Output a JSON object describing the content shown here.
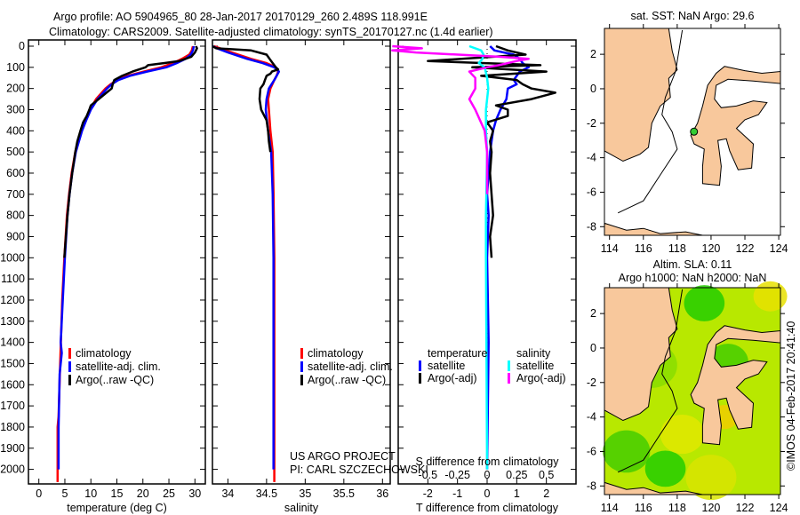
{
  "header": {
    "title_line1": "Argo profile: AO 5904965_80 28-Jan-2017 20170129_260 2.489S 118.991E",
    "title_line2": "Climatology: CARS2009. Satellite-adjusted climatology: synTS_20170127.nc (1.4d earlier)"
  },
  "credit": {
    "line1": "US ARGO PROJECT",
    "line2": "PI: CARL SZCZECHOWSKI"
  },
  "watermark": "©IMOS 04-Feb-2017 20:41:40",
  "colors": {
    "climatology": "#ff0000",
    "satellite": "#0000ff",
    "argo": "#000000",
    "sal_satellite": "#00ffff",
    "sal_argo": "#ff00ff",
    "land": "#f8c89c",
    "float": "#33cc33"
  },
  "chart_data": [
    {
      "type": "line",
      "id": "temperature",
      "xlabel": "temperature (deg C)",
      "ylabel": "",
      "xlim": [
        -2,
        32
      ],
      "ylim": [
        2060,
        0
      ],
      "xticks": [
        0,
        5,
        10,
        15,
        20,
        25,
        30
      ],
      "yticks": [
        0,
        100,
        200,
        300,
        400,
        500,
        600,
        700,
        800,
        900,
        1000,
        1100,
        1200,
        1300,
        1400,
        1500,
        1600,
        1700,
        1800,
        1900,
        2000
      ],
      "legend": [
        "climatology",
        "satellite-adj. clim.",
        "Argo(..raw -QC)"
      ],
      "series": [
        {
          "name": "climatology",
          "color": "#ff0000",
          "depth": [
            0,
            20,
            40,
            60,
            80,
            100,
            120,
            140,
            160,
            180,
            200,
            250,
            300,
            350,
            400,
            500,
            600,
            700,
            800,
            1000,
            1200,
            1500,
            1750,
            1800,
            2000,
            2060
          ],
          "values": [
            29.6,
            29.4,
            28.9,
            27.5,
            25.8,
            23.5,
            20.2,
            17,
            15,
            13.8,
            12.8,
            11,
            9.8,
            8.9,
            8.1,
            7,
            6.3,
            5.8,
            5.4,
            4.9,
            4.5,
            4.1,
            3.8,
            3.6,
            3.6,
            3.6
          ]
        },
        {
          "name": "satellite-adj. clim.",
          "color": "#0000ff",
          "depth": [
            0,
            20,
            40,
            60,
            80,
            100,
            120,
            140,
            160,
            180,
            200,
            250,
            300,
            350,
            400,
            500,
            600,
            700,
            800,
            1000,
            1200,
            1400,
            1450,
            1550,
            1800,
            2000
          ],
          "values": [
            29.8,
            29.6,
            29.2,
            28.2,
            26.5,
            24.5,
            20.8,
            17.5,
            15.3,
            14,
            13.1,
            11.3,
            10,
            9.1,
            8.3,
            7.1,
            6.4,
            5.9,
            5.5,
            5,
            4.6,
            4.2,
            4.4,
            4,
            3.8,
            3.8
          ]
        },
        {
          "name": "Argo(..raw -QC)",
          "color": "#000000",
          "depth": [
            0,
            10,
            30,
            50,
            70,
            80,
            90,
            100,
            120,
            140,
            160,
            180,
            200,
            220,
            250,
            280,
            300,
            330,
            360,
            400,
            450,
            500,
            600,
            700,
            800,
            900,
            1000
          ],
          "values": [
            30.2,
            30.4,
            30,
            29.3,
            27,
            24,
            21,
            20.5,
            18,
            16,
            14.5,
            14.2,
            14,
            13,
            11.5,
            10,
            9.7,
            9.2,
            8.5,
            8,
            7.4,
            7,
            6.4,
            5.9,
            5.5,
            5.2,
            4.9
          ]
        }
      ]
    },
    {
      "type": "line",
      "id": "salinity",
      "xlabel": "salinity",
      "xlim": [
        33.8,
        36.1
      ],
      "ylim": [
        2060,
        0
      ],
      "xticks": [
        34,
        34.5,
        35,
        35.5,
        36
      ],
      "xtick_labels": [
        "34",
        "34.5",
        "35",
        "35.5",
        "36"
      ],
      "legend": [
        "climatology",
        "satellite-adj. clim.",
        "Argo(..raw -QC)"
      ],
      "series": [
        {
          "name": "climatology",
          "color": "#ff0000",
          "depth": [
            0,
            10,
            30,
            60,
            80,
            100,
            120,
            140,
            160,
            200,
            250,
            300,
            400,
            500,
            700,
            1000,
            1500,
            2000,
            2060
          ],
          "values": [
            33.82,
            33.9,
            34.05,
            34.3,
            34.5,
            34.62,
            34.65,
            34.63,
            34.6,
            34.55,
            34.52,
            34.53,
            34.55,
            34.58,
            34.59,
            34.6,
            34.6,
            34.6,
            34.6
          ]
        },
        {
          "name": "satellite-adj. clim.",
          "color": "#0000ff",
          "depth": [
            0,
            10,
            30,
            60,
            80,
            100,
            120,
            140,
            160,
            200,
            250,
            300,
            400,
            500,
            700,
            1000,
            1500,
            2000
          ],
          "values": [
            33.8,
            33.86,
            34.0,
            34.25,
            34.45,
            34.6,
            34.66,
            34.63,
            34.6,
            34.53,
            34.5,
            34.49,
            34.52,
            34.56,
            34.58,
            34.59,
            34.59,
            34.59
          ]
        },
        {
          "name": "Argo(..raw -QC)",
          "color": "#000000",
          "depth": [
            0,
            10,
            20,
            40,
            60,
            80,
            100,
            110,
            120,
            130,
            140,
            160,
            180,
            200,
            250,
            300,
            350,
            400,
            450,
            500
          ],
          "values": [
            33.8,
            33.85,
            34.3,
            34.5,
            34.54,
            34.58,
            34.62,
            34.65,
            34.57,
            34.55,
            34.5,
            34.48,
            34.46,
            34.42,
            34.41,
            34.43,
            34.5,
            34.52,
            34.53,
            34.55
          ]
        }
      ]
    },
    {
      "type": "line",
      "id": "difference",
      "xlabel": "T difference from climatology",
      "xlabel2": "S difference from climatology",
      "xlim": [
        -3,
        3
      ],
      "ylim": [
        2060,
        0
      ],
      "xticks": [
        -2,
        -1,
        0,
        1,
        2
      ],
      "xticks2": [
        -0.5,
        -0.25,
        0,
        0.25,
        0.5
      ],
      "xtick2_labels": [
        "-0.5",
        "-0.25",
        "0",
        "0.25",
        "0.5"
      ],
      "legend_temperature": {
        "title": "temperature",
        "items": [
          "satellite",
          "Argo(-adj)"
        ]
      },
      "legend_salinity": {
        "title": "salinity",
        "items": [
          "satellite",
          "Argo(-adj)"
        ]
      },
      "series": [
        {
          "name": "T satellite",
          "color": "#0000ff",
          "depth": [
            0,
            20,
            40,
            60,
            80,
            100,
            120,
            140,
            160,
            180,
            200,
            250,
            300,
            350,
            400,
            500,
            600,
            700,
            800,
            1000,
            1400,
            2000
          ],
          "values": [
            0.1,
            0.25,
            0.9,
            1.1,
            1.2,
            1.4,
            1.1,
            1.0,
            0.9,
            1.0,
            0.7,
            0.65,
            0.45,
            0.3,
            0.2,
            0.1,
            0.05,
            0.0,
            0.05,
            0.0,
            0.05,
            0.0
          ]
        },
        {
          "name": "T Argo",
          "color": "#000000",
          "depth": [
            0,
            20,
            40,
            70,
            90,
            100,
            120,
            140,
            160,
            180,
            200,
            220,
            250,
            280,
            300,
            330,
            360,
            400,
            450,
            500,
            600,
            700,
            800,
            900,
            1000
          ],
          "values": [
            0.3,
            0.7,
            1.3,
            -2,
            1.8,
            -0.5,
            2.0,
            -0.2,
            1.0,
            1.2,
            1.5,
            2.3,
            1.5,
            0.3,
            0.7,
            0.7,
            0.0,
            0.2,
            0.1,
            0.15,
            0.1,
            0.15,
            0.2,
            0.1,
            0.15
          ]
        },
        {
          "name": "S satellite",
          "color": "#00ffff",
          "depth": [
            0,
            20,
            40,
            60,
            80,
            100,
            150,
            200,
            250,
            300,
            400,
            500,
            800,
            1000,
            2000
          ],
          "values": [
            -0.15,
            -0.05,
            -0.03,
            -0.04,
            -0.07,
            -0.02,
            0.0,
            0.01,
            0.0,
            -0.01,
            -0.01,
            0.0,
            -0.01,
            -0.01,
            0.0
          ]
        },
        {
          "name": "S Argo",
          "color": "#ff00ff",
          "depth": [
            0,
            10,
            20,
            30,
            50,
            60,
            70,
            90,
            100,
            120,
            150,
            200,
            250,
            300,
            400,
            500,
            700
          ],
          "values": [
            -0.8,
            -0.55,
            -0.8,
            -0.6,
            0.1,
            0.35,
            0.25,
            0.1,
            0.0,
            -0.15,
            -0.1,
            -0.1,
            -0.15,
            -0.1,
            -0.02,
            0.0,
            0.0
          ]
        }
      ]
    },
    {
      "type": "heatmap",
      "id": "sst-map",
      "title": "sat. SST: NaN Argo: 29.6",
      "xlim": [
        113.7,
        124.1
      ],
      "ylim": [
        -8.5,
        3.5
      ],
      "xticks": [
        114,
        116,
        118,
        120,
        122,
        124
      ],
      "yticks": [
        2,
        0,
        -2,
        -4,
        -6,
        -8
      ],
      "float_position": {
        "lon": 118.991,
        "lat": -2.489
      }
    },
    {
      "type": "heatmap",
      "id": "sla-map",
      "title_line1": "Altim. SLA: 0.11",
      "title_line2": "Argo h1000: NaN h2000: NaN",
      "xlim": [
        113.7,
        124.1
      ],
      "ylim": [
        -8.5,
        3.5
      ],
      "xticks": [
        114,
        116,
        118,
        120,
        122,
        124
      ],
      "yticks": [
        2,
        0,
        -2,
        -4,
        -6,
        -8
      ]
    }
  ]
}
